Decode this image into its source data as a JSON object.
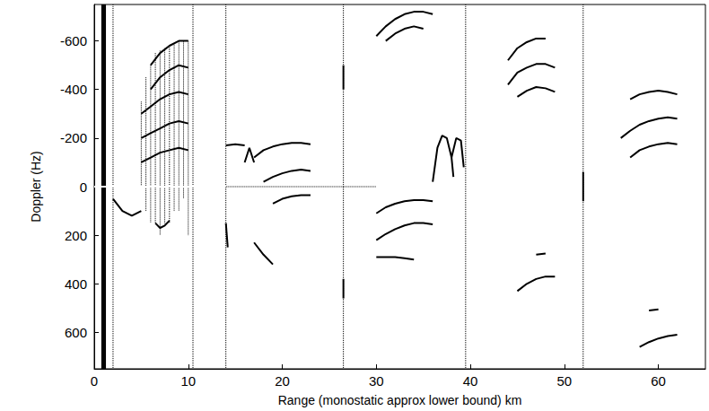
{
  "chart_data": {
    "type": "line",
    "xlabel": "Range (monostatic approx lower bound) km",
    "ylabel": "Doppler (Hz)",
    "xlim": [
      0,
      65
    ],
    "ylim": [
      750,
      -750
    ],
    "xticks": [
      0,
      10,
      20,
      30,
      40,
      50,
      60
    ],
    "yticks": [
      -600,
      -400,
      -200,
      0,
      200,
      400,
      600
    ],
    "grid": false,
    "series": [
      {
        "color": "#000000",
        "line_style": "solid",
        "x": [
          0.85,
          0.85
        ],
        "values": [
          -750,
          750
        ]
      },
      {
        "color": "#000000",
        "line_style": "solid",
        "x": [
          1.0,
          1.0
        ],
        "values": [
          -750,
          750
        ]
      },
      {
        "color": "#000000",
        "line_style": "solid",
        "x": [
          1.15,
          1.15
        ],
        "values": [
          -750,
          750
        ]
      },
      {
        "color": "#000000",
        "line_style": "dotted",
        "x": [
          2,
          2
        ],
        "values": [
          -750,
          750
        ]
      },
      {
        "color": "#000000",
        "line_style": "dotted",
        "x": [
          10.5,
          10.5
        ],
        "values": [
          -750,
          750
        ]
      },
      {
        "color": "#000000",
        "line_style": "dotted",
        "x": [
          14,
          14
        ],
        "values": [
          -750,
          750
        ]
      },
      {
        "color": "#000000",
        "line_style": "dotted",
        "x": [
          26.5,
          26.5
        ],
        "values": [
          -750,
          750
        ]
      },
      {
        "color": "#000000",
        "line_style": "dotted",
        "x": [
          39.5,
          39.5
        ],
        "values": [
          -750,
          750
        ]
      },
      {
        "color": "#000000",
        "line_style": "dotted",
        "x": [
          52,
          52
        ],
        "values": [
          -750,
          750
        ]
      },
      {
        "color": "#000000",
        "line_style": "dotted",
        "x": [
          5,
          5
        ],
        "values": [
          -350,
          0
        ]
      },
      {
        "color": "#000000",
        "line_style": "dotted",
        "x": [
          5.5,
          5.5
        ],
        "values": [
          -450,
          100
        ]
      },
      {
        "color": "#000000",
        "line_style": "dotted",
        "x": [
          6,
          6
        ],
        "values": [
          -500,
          150
        ]
      },
      {
        "color": "#000000",
        "line_style": "dotted",
        "x": [
          6.5,
          6.5
        ],
        "values": [
          -550,
          150
        ]
      },
      {
        "color": "#000000",
        "line_style": "dotted",
        "x": [
          7,
          7
        ],
        "values": [
          -560,
          200
        ]
      },
      {
        "color": "#000000",
        "line_style": "dotted",
        "x": [
          7.5,
          7.5
        ],
        "values": [
          -570,
          150
        ]
      },
      {
        "color": "#000000",
        "line_style": "dotted",
        "x": [
          8,
          8
        ],
        "values": [
          -580,
          150
        ]
      },
      {
        "color": "#000000",
        "line_style": "dotted",
        "x": [
          8.5,
          8.5
        ],
        "values": [
          -590,
          100
        ]
      },
      {
        "color": "#000000",
        "line_style": "dotted",
        "x": [
          9,
          9
        ],
        "values": [
          -600,
          100
        ]
      },
      {
        "color": "#000000",
        "line_style": "dotted",
        "x": [
          9.5,
          9.5
        ],
        "values": [
          -600,
          50
        ]
      },
      {
        "color": "#000000",
        "line_style": "dotted",
        "x": [
          10,
          10
        ],
        "values": [
          -600,
          200
        ]
      },
      {
        "color": "#000000",
        "line_style": "solid",
        "x": [
          6,
          7,
          8,
          9,
          10
        ],
        "values": [
          -500,
          -550,
          -580,
          -600,
          -600
        ]
      },
      {
        "color": "#000000",
        "line_style": "solid",
        "x": [
          6,
          7,
          8,
          9,
          10
        ],
        "values": [
          -400,
          -450,
          -480,
          -500,
          -490
        ]
      },
      {
        "color": "#000000",
        "line_style": "solid",
        "x": [
          5,
          6,
          7,
          8,
          9,
          10
        ],
        "values": [
          -300,
          -330,
          -360,
          -380,
          -390,
          -380
        ]
      },
      {
        "color": "#000000",
        "line_style": "solid",
        "x": [
          5,
          6,
          7,
          8,
          9,
          10
        ],
        "values": [
          -200,
          -220,
          -240,
          -260,
          -270,
          -260
        ]
      },
      {
        "color": "#000000",
        "line_style": "solid",
        "x": [
          5,
          6,
          7,
          8,
          9,
          10
        ],
        "values": [
          -100,
          -120,
          -140,
          -150,
          -160,
          -150
        ]
      },
      {
        "color": "#000000",
        "line_style": "solid",
        "x": [
          2,
          3,
          4,
          5
        ],
        "values": [
          50,
          100,
          120,
          100
        ]
      },
      {
        "color": "#000000",
        "line_style": "solid",
        "x": [
          6.5,
          7,
          7.5,
          8
        ],
        "values": [
          150,
          170,
          160,
          140
        ]
      },
      {
        "color": "#ffffff",
        "line_style": "solid",
        "x": [
          0,
          14
        ],
        "values": [
          0,
          0
        ]
      },
      {
        "color": "#000000",
        "line_style": "dotted",
        "x": [
          14,
          30
        ],
        "values": [
          0,
          0
        ]
      },
      {
        "color": "#000000",
        "line_style": "solid",
        "x": [
          14,
          15,
          16
        ],
        "values": [
          -170,
          -175,
          -170
        ]
      },
      {
        "color": "#000000",
        "line_style": "solid",
        "x": [
          16,
          16.5,
          17
        ],
        "values": [
          -100,
          -160,
          -100
        ]
      },
      {
        "color": "#000000",
        "line_style": "solid",
        "x": [
          14,
          14.2
        ],
        "values": [
          150,
          250
        ]
      },
      {
        "color": "#000000",
        "line_style": "solid",
        "x": [
          17,
          18,
          19,
          20,
          21,
          22,
          23
        ],
        "values": [
          -120,
          -150,
          -165,
          -175,
          -180,
          -180,
          -175
        ]
      },
      {
        "color": "#000000",
        "line_style": "solid",
        "x": [
          18,
          19,
          20,
          21,
          22,
          23
        ],
        "values": [
          -20,
          -40,
          -55,
          -65,
          -70,
          -65
        ]
      },
      {
        "color": "#000000",
        "line_style": "solid",
        "x": [
          19,
          20,
          21,
          22,
          23
        ],
        "values": [
          70,
          50,
          40,
          35,
          35
        ]
      },
      {
        "color": "#000000",
        "line_style": "solid",
        "x": [
          17,
          18,
          19
        ],
        "values": [
          230,
          280,
          320
        ]
      },
      {
        "color": "#000000",
        "line_style": "solid",
        "x": [
          26.5,
          26.5
        ],
        "values": [
          -500,
          -400
        ]
      },
      {
        "color": "#000000",
        "line_style": "solid",
        "x": [
          26.5,
          26.5
        ],
        "values": [
          380,
          460
        ]
      },
      {
        "color": "#000000",
        "line_style": "solid",
        "x": [
          30,
          31,
          32,
          33,
          34,
          35,
          36
        ],
        "values": [
          -620,
          -660,
          -690,
          -710,
          -720,
          -720,
          -710
        ]
      },
      {
        "color": "#000000",
        "line_style": "solid",
        "x": [
          31,
          32,
          33,
          34,
          35
        ],
        "values": [
          -600,
          -630,
          -650,
          -660,
          -650
        ]
      },
      {
        "color": "#000000",
        "line_style": "solid",
        "x": [
          30,
          31,
          32,
          33,
          34,
          35,
          36
        ],
        "values": [
          110,
          85,
          70,
          60,
          55,
          55,
          60
        ]
      },
      {
        "color": "#000000",
        "line_style": "solid",
        "x": [
          30,
          31,
          32,
          33,
          34,
          35,
          36
        ],
        "values": [
          220,
          195,
          175,
          160,
          150,
          150,
          155
        ]
      },
      {
        "color": "#000000",
        "line_style": "solid",
        "x": [
          30,
          31,
          32,
          33,
          34
        ],
        "values": [
          290,
          290,
          290,
          295,
          300
        ]
      },
      {
        "color": "#000000",
        "line_style": "solid",
        "x": [
          36,
          36.5,
          37,
          37.5,
          38,
          38.2
        ],
        "values": [
          -20,
          -160,
          -210,
          -200,
          -120,
          -40
        ]
      },
      {
        "color": "#000000",
        "line_style": "solid",
        "x": [
          38,
          38.5,
          39,
          39.3
        ],
        "values": [
          -120,
          -200,
          -190,
          -80
        ]
      },
      {
        "color": "#000000",
        "line_style": "solid",
        "x": [
          44,
          45,
          46,
          47,
          48
        ],
        "values": [
          -520,
          -570,
          -595,
          -610,
          -610
        ]
      },
      {
        "color": "#000000",
        "line_style": "solid",
        "x": [
          44,
          45,
          46,
          47,
          48,
          49
        ],
        "values": [
          -420,
          -470,
          -490,
          -505,
          -505,
          -490
        ]
      },
      {
        "color": "#000000",
        "line_style": "solid",
        "x": [
          45,
          46,
          47,
          48,
          49
        ],
        "values": [
          -370,
          -395,
          -410,
          -405,
          -390
        ]
      },
      {
        "color": "#000000",
        "line_style": "solid",
        "x": [
          45,
          46,
          47,
          48,
          49
        ],
        "values": [
          430,
          400,
          380,
          370,
          370
        ]
      },
      {
        "color": "#000000",
        "line_style": "solid",
        "x": [
          47,
          48
        ],
        "values": [
          280,
          275
        ]
      },
      {
        "color": "#000000",
        "line_style": "solid",
        "x": [
          52,
          52
        ],
        "values": [
          -60,
          60
        ]
      },
      {
        "color": "#000000",
        "line_style": "solid",
        "x": [
          57,
          58,
          59,
          60,
          61,
          62
        ],
        "values": [
          -360,
          -380,
          -390,
          -395,
          -390,
          -380
        ]
      },
      {
        "color": "#000000",
        "line_style": "solid",
        "x": [
          56,
          57,
          58,
          59,
          60,
          61,
          62
        ],
        "values": [
          -200,
          -230,
          -255,
          -270,
          -280,
          -285,
          -280
        ]
      },
      {
        "color": "#000000",
        "line_style": "solid",
        "x": [
          57,
          58,
          59,
          60,
          61,
          62
        ],
        "values": [
          -120,
          -150,
          -165,
          -175,
          -180,
          -175
        ]
      },
      {
        "color": "#000000",
        "line_style": "solid",
        "x": [
          58,
          59,
          60,
          61,
          62
        ],
        "values": [
          660,
          640,
          625,
          615,
          610
        ]
      },
      {
        "color": "#000000",
        "line_style": "solid",
        "x": [
          59,
          60
        ],
        "values": [
          510,
          505
        ]
      }
    ]
  }
}
